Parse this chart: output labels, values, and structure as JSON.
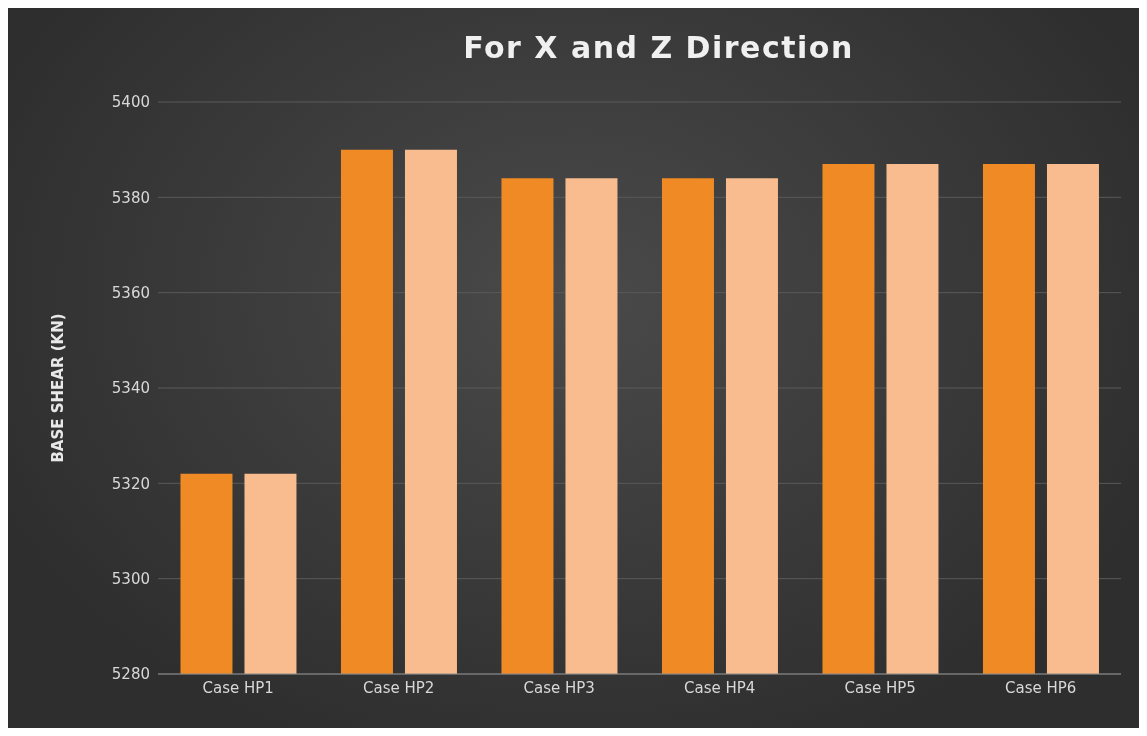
{
  "chart_data": {
    "type": "bar",
    "title": "For X and Z Direction",
    "ylabel": "BASE SHEAR (KN)",
    "categories": [
      "Case HP1",
      "Case HP2",
      "Case HP3",
      "Case HP4",
      "Case HP5",
      "Case HP6"
    ],
    "series": [
      {
        "color": "#f08a24",
        "values": [
          5322,
          5390,
          5384,
          5384,
          5387,
          5387
        ]
      },
      {
        "color": "#f8bc8e",
        "values": [
          5322,
          5390,
          5384,
          5384,
          5387,
          5387
        ]
      }
    ],
    "ylim": [
      5280,
      5400
    ],
    "yticks": [
      5280,
      5300,
      5320,
      5340,
      5360,
      5380,
      5400
    ],
    "grid": "y",
    "legend": false
  }
}
